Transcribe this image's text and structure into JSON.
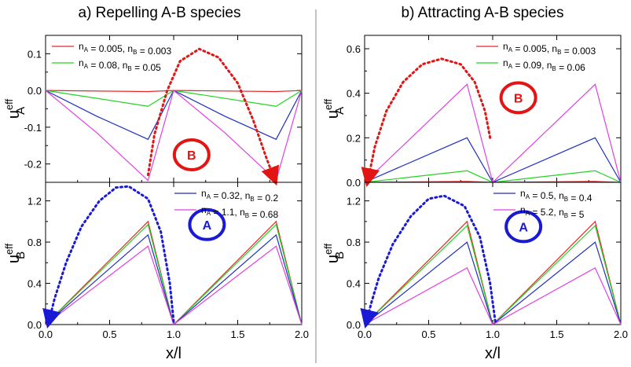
{
  "panel_titles": {
    "a": "a)  Repelling A-B species",
    "b": "b)  Attracting A-B species"
  },
  "colors": {
    "red": "#e8262a",
    "green": "#22d322",
    "blue": "#1f2fbf",
    "magenta": "#e040e0",
    "marker_red": "#e31414",
    "marker_blue": "#1a1ad6"
  },
  "chart_data": [
    {
      "id": "a_top",
      "type": "line",
      "ylabel_main": "u",
      "ylabel_sup": "eff",
      "ylabel_sub": "A",
      "xlim": [
        0,
        2
      ],
      "ylim": [
        -0.25,
        0.15
      ],
      "yticks": [
        -0.2,
        -0.1,
        0.0,
        0.1
      ],
      "ytick_labels": [
        "-0.2",
        "-0.1",
        "0.0",
        "0.1"
      ],
      "legend": [
        {
          "color": "red",
          "text": "n_A = 0.005, n_B = 0.003"
        },
        {
          "color": "green",
          "text": "n_A = 0.08, n_B = 0.05"
        }
      ],
      "series": [
        {
          "name": "nA=0.005, nB=0.003",
          "color": "red",
          "x": [
            0,
            0.8,
            1.0,
            1.8,
            2.0
          ],
          "y": [
            0,
            -0.003,
            0,
            -0.003,
            0
          ]
        },
        {
          "name": "nA=0.08, nB=0.05",
          "color": "green",
          "x": [
            0,
            0.8,
            1.0,
            1.8,
            2.0
          ],
          "y": [
            0,
            -0.043,
            0,
            -0.043,
            0
          ]
        },
        {
          "name": "nA=0.32, nB=0.2",
          "color": "blue",
          "x": [
            0,
            0.4,
            0.8,
            1.0,
            1.4,
            1.8,
            2.0
          ],
          "y": [
            0,
            -0.07,
            -0.133,
            0,
            -0.07,
            -0.133,
            0
          ]
        },
        {
          "name": "nA=1.1, nB=0.68",
          "color": "magenta",
          "x": [
            0,
            0.4,
            0.8,
            1.0,
            1.4,
            1.8,
            2.0
          ],
          "y": [
            0,
            -0.115,
            -0.245,
            0,
            -0.115,
            -0.245,
            0
          ]
        }
      ],
      "arrow": {
        "color": "marker_red",
        "x": [
          0.8,
          0.85,
          0.95,
          1.05,
          1.2,
          1.35,
          1.5,
          1.62,
          1.72,
          1.78
        ],
        "y": [
          -0.23,
          -0.12,
          0.0,
          0.08,
          0.113,
          0.09,
          0.02,
          -0.08,
          -0.18,
          -0.235
        ]
      },
      "marker": {
        "label": "B",
        "color": "marker_red",
        "x": 1.14,
        "y": -0.175
      },
      "show_xticks": false
    },
    {
      "id": "a_bottom",
      "type": "line",
      "ylabel_main": "u",
      "ylabel_sup": "eff",
      "ylabel_sub": "B",
      "xlabel": "x/l",
      "xlim": [
        0,
        2
      ],
      "ylim": [
        0,
        1.38
      ],
      "xticks": [
        0,
        0.5,
        1,
        1.5,
        2
      ],
      "xtick_labels": [
        "0.0",
        "0.5",
        "1.0",
        "1.5",
        "2.0"
      ],
      "yticks": [
        0.0,
        0.4,
        0.8,
        1.2
      ],
      "ytick_labels": [
        "0.0",
        "0.4",
        "0.8",
        "1.2"
      ],
      "legend": [
        {
          "color": "blue",
          "text": "n_A = 0.32, n_B = 0.2"
        },
        {
          "color": "magenta",
          "text": "n_A = 1.1, n_B = 0.68"
        }
      ],
      "series": [
        {
          "name": "nA=0.005, nB=0.003",
          "color": "red",
          "x": [
            0,
            0.8,
            1.0,
            1.8,
            2.0
          ],
          "y": [
            0,
            1.0,
            0,
            1.0,
            0
          ]
        },
        {
          "name": "nA=0.08, nB=0.05",
          "color": "green",
          "x": [
            0,
            0.8,
            1.0,
            1.8,
            2.0
          ],
          "y": [
            0,
            0.97,
            0,
            0.97,
            0
          ]
        },
        {
          "name": "nA=0.32, nB=0.2",
          "color": "blue",
          "x": [
            0,
            0.8,
            1.0,
            1.8,
            2.0
          ],
          "y": [
            0,
            0.87,
            0,
            0.87,
            0
          ]
        },
        {
          "name": "nA=1.1, nB=0.68",
          "color": "magenta",
          "x": [
            0,
            0.8,
            1.0,
            1.8,
            2.0
          ],
          "y": [
            0,
            0.76,
            0,
            0.76,
            0
          ]
        }
      ],
      "arrow": {
        "color": "marker_blue",
        "x": [
          1.0,
          0.97,
          0.9,
          0.8,
          0.65,
          0.55,
          0.42,
          0.28,
          0.16,
          0.07,
          0.03
        ],
        "y": [
          0.03,
          0.4,
          0.9,
          1.22,
          1.34,
          1.33,
          1.2,
          0.95,
          0.6,
          0.25,
          0.05
        ]
      },
      "marker": {
        "label": "A",
        "color": "marker_blue",
        "x": 1.26,
        "y": 0.97
      },
      "show_xticks": true
    },
    {
      "id": "b_top",
      "type": "line",
      "ylabel_main": "u",
      "ylabel_sup": "eff",
      "ylabel_sub": "A",
      "xlim": [
        0,
        2
      ],
      "ylim": [
        0,
        0.66
      ],
      "yticks": [
        0.0,
        0.2,
        0.4,
        0.6
      ],
      "ytick_labels": [
        "0.0",
        "0.2",
        "0.4",
        "0.6"
      ],
      "legend": [
        {
          "color": "red",
          "text": "n_A = 0.005, n_B = 0.003"
        },
        {
          "color": "green",
          "text": "n_A = 0.09, n_B = 0.06"
        }
      ],
      "series": [
        {
          "name": "nA=0.005, nB=0.003",
          "color": "red",
          "x": [
            0,
            0.8,
            1.0,
            1.8,
            2.0
          ],
          "y": [
            0,
            0.004,
            0,
            0.004,
            0
          ]
        },
        {
          "name": "nA=0.09, nB=0.06",
          "color": "green",
          "x": [
            0,
            0.8,
            1.0,
            1.8,
            2.0
          ],
          "y": [
            0,
            0.052,
            0,
            0.052,
            0
          ]
        },
        {
          "name": "nA=0.5, nB=0.4",
          "color": "blue",
          "x": [
            0,
            0.8,
            1.0,
            1.8,
            2.0
          ],
          "y": [
            0,
            0.2,
            0,
            0.2,
            0
          ]
        },
        {
          "name": "nA=5.2, nB=5",
          "color": "magenta",
          "x": [
            0,
            0.8,
            1.0,
            1.8,
            2.0
          ],
          "y": [
            0,
            0.44,
            0,
            0.44,
            0
          ]
        }
      ],
      "arrow": {
        "color": "marker_red",
        "x": [
          0.98,
          0.94,
          0.86,
          0.75,
          0.6,
          0.45,
          0.3,
          0.17,
          0.08,
          0.03
        ],
        "y": [
          0.2,
          0.32,
          0.45,
          0.53,
          0.555,
          0.53,
          0.45,
          0.32,
          0.16,
          0.02
        ]
      },
      "marker": {
        "label": "B",
        "color": "marker_red",
        "x": 1.2,
        "y": 0.38
      },
      "show_xticks": false
    },
    {
      "id": "b_bottom",
      "type": "line",
      "ylabel_main": "u",
      "ylabel_sup": "eff",
      "ylabel_sub": "B",
      "xlabel": "x/l",
      "xlim": [
        0,
        2
      ],
      "ylim": [
        0,
        1.38
      ],
      "xticks": [
        0,
        0.5,
        1,
        1.5,
        2
      ],
      "xtick_labels": [
        "0.0",
        "0.5",
        "1.0",
        "1.5",
        "2.0"
      ],
      "yticks": [
        0.0,
        0.4,
        0.8,
        1.2
      ],
      "ytick_labels": [
        "0.0",
        "0.4",
        "0.8",
        "1.2"
      ],
      "legend": [
        {
          "color": "blue",
          "text": "n_A = 0.5, n_B = 0.4"
        },
        {
          "color": "magenta",
          "text": "n_A = 5.2, n_B = 5"
        }
      ],
      "series": [
        {
          "name": "nA=0.005, nB=0.003",
          "color": "red",
          "x": [
            0,
            0.8,
            1.0,
            1.8,
            2.0
          ],
          "y": [
            0,
            1.0,
            0,
            1.0,
            0
          ]
        },
        {
          "name": "nA=0.09, nB=0.06",
          "color": "green",
          "x": [
            0,
            0.8,
            1.0,
            1.8,
            2.0
          ],
          "y": [
            0,
            0.96,
            0,
            0.96,
            0
          ]
        },
        {
          "name": "nA=0.5, nB=0.4",
          "color": "blue",
          "x": [
            0,
            0.8,
            1.0,
            1.8,
            2.0
          ],
          "y": [
            0,
            0.8,
            0,
            0.8,
            0
          ]
        },
        {
          "name": "nA=5.2, nB=5",
          "color": "magenta",
          "x": [
            0,
            0.8,
            1.0,
            1.8,
            2.0
          ],
          "y": [
            0,
            0.55,
            0,
            0.55,
            0
          ]
        }
      ],
      "arrow": {
        "color": "marker_blue",
        "x": [
          1.02,
          0.98,
          0.9,
          0.78,
          0.62,
          0.5,
          0.36,
          0.22,
          0.11,
          0.05,
          0.02
        ],
        "y": [
          0.03,
          0.4,
          0.85,
          1.15,
          1.25,
          1.22,
          1.05,
          0.78,
          0.45,
          0.2,
          0.05
        ]
      },
      "marker": {
        "label": "A",
        "color": "marker_blue",
        "x": 1.24,
        "y": 0.95
      },
      "show_xticks": true
    }
  ]
}
